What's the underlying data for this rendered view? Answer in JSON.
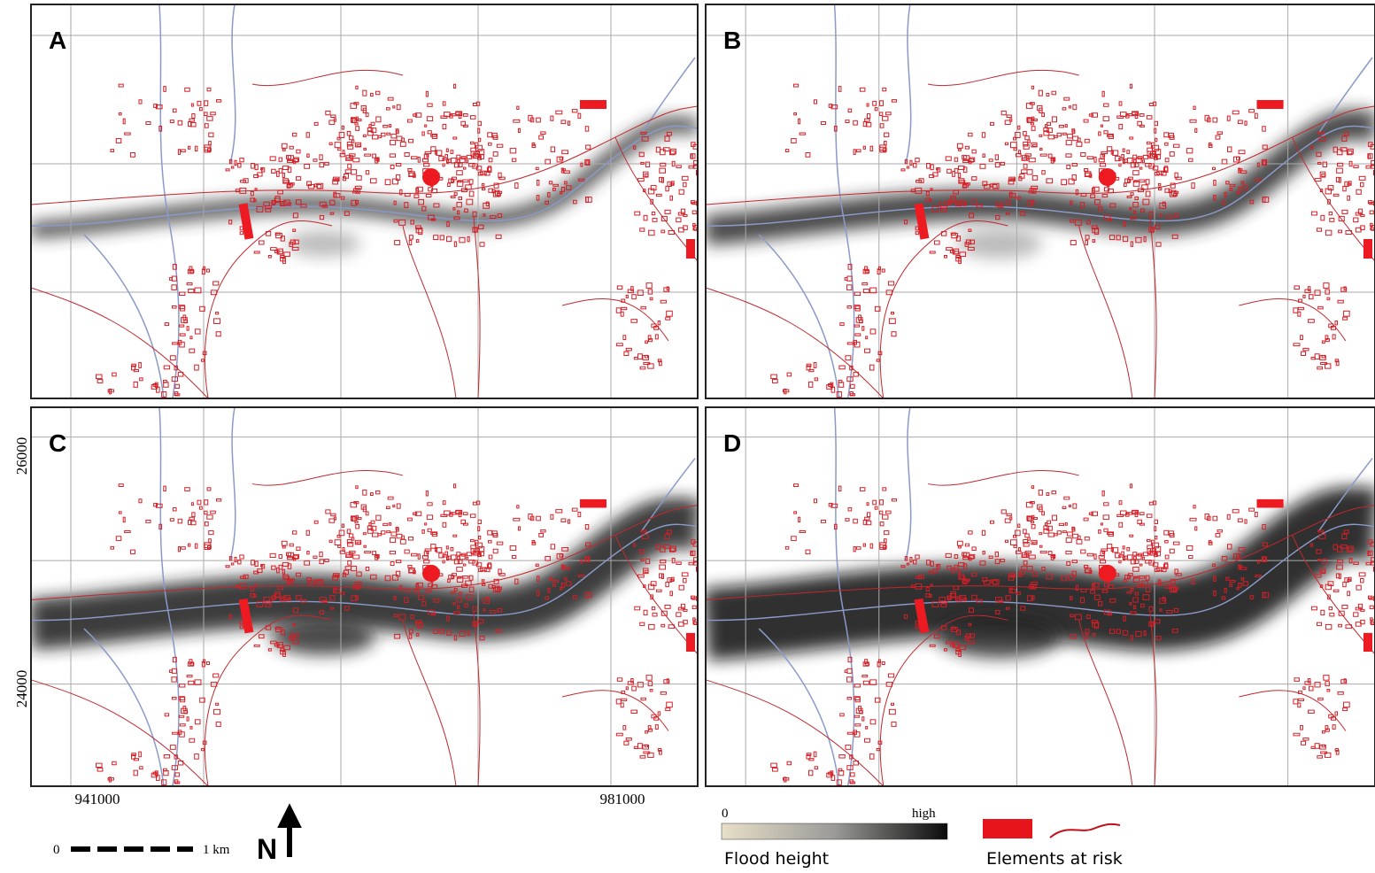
{
  "panels": [
    {
      "label": "A"
    },
    {
      "label": "B"
    },
    {
      "label": "C"
    },
    {
      "label": "D"
    }
  ],
  "map_axes": {
    "x_labels": [
      941000,
      981000
    ],
    "y_labels": [
      26000,
      24000
    ]
  },
  "scale_bar": {
    "start": "0",
    "end": "1 km",
    "north": "N"
  },
  "legend": {
    "flood": {
      "low": "0",
      "high": "high",
      "title": "Flood height"
    },
    "risk": {
      "title": "Elements at risk"
    }
  }
}
